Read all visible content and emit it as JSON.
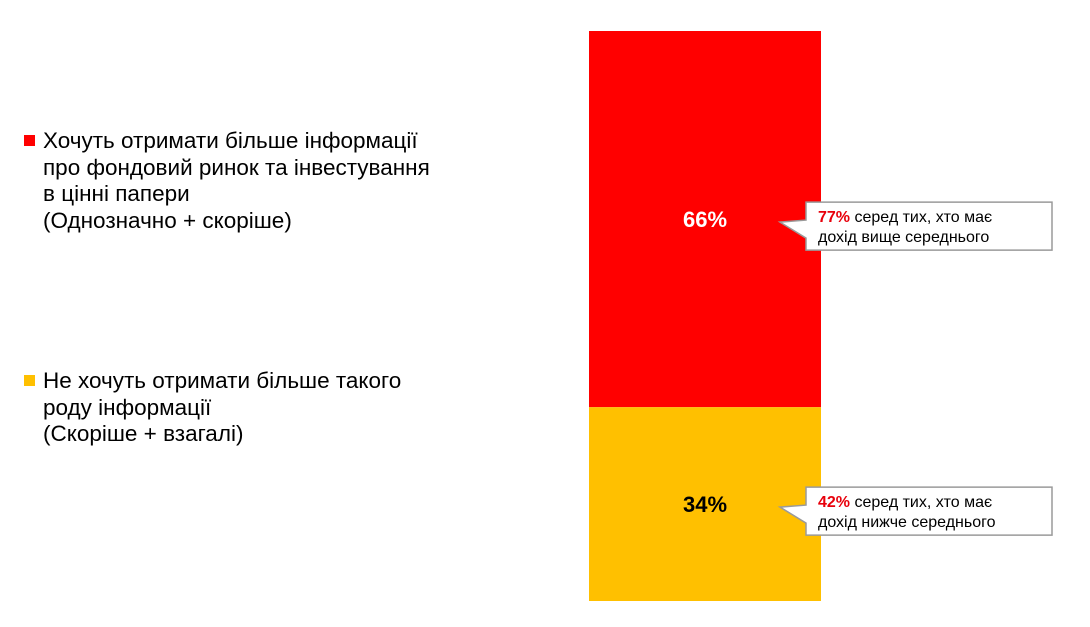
{
  "legend": [
    {
      "lines": [
        "Хочуть отримати більше інформації",
        "про фондовий ринок та інвестування",
        "в цінні папери",
        "(Однозначно + скоріше)"
      ],
      "color": "#ff0000"
    },
    {
      "lines": [
        "Не хочуть отримати більше такого",
        "роду інформації",
        "(Скоріше + взагалі)"
      ],
      "color": "#ffc000"
    }
  ],
  "chart_data": {
    "type": "bar",
    "stacked": true,
    "ylim": [
      0,
      100
    ],
    "series": [
      {
        "name": "Хочуть отримати більше інформації про фондовий ринок та інвестування в цінні папери (Однозначно + скоріше)",
        "value": 66,
        "label": "66%",
        "color": "#ff0000"
      },
      {
        "name": "Не хочуть отримати більше такого роду інформації (Скоріше + взагалі)",
        "value": 34,
        "label": "34%",
        "color": "#ffc000"
      }
    ],
    "annotations": [
      {
        "series_index": 0,
        "pct": "77%",
        "line1_rest": " серед тих, хто має",
        "line2": "дохід вище середнього"
      },
      {
        "series_index": 1,
        "pct": "42%",
        "line1_rest": " серед тих, хто має",
        "line2": "дохід нижче середнього"
      }
    ]
  }
}
